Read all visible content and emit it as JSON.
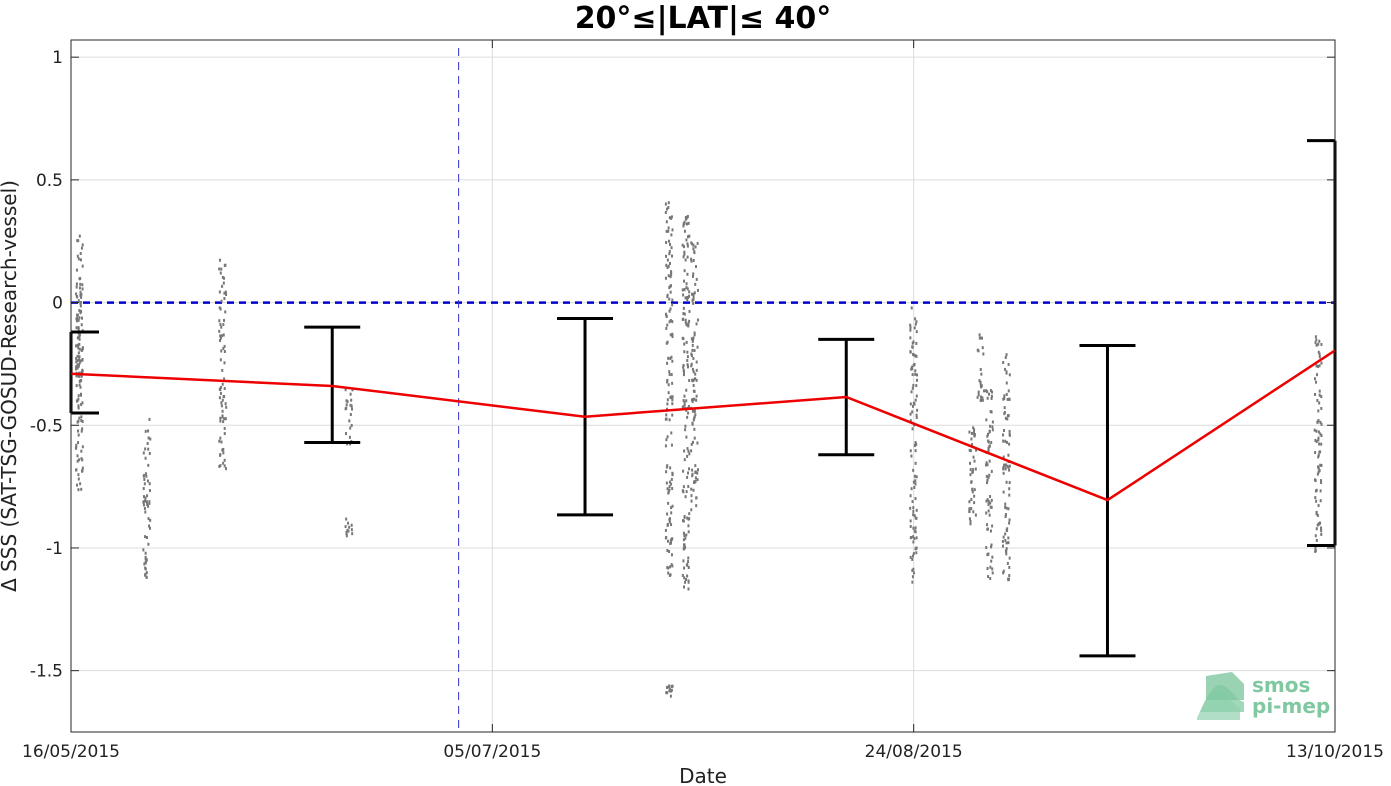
{
  "chart_data": {
    "type": "scatter",
    "title": "20°≤|LAT|≤ 40°",
    "xlabel": "Date",
    "ylabel": "Δ SSS (SAT-TSG-GOSUD-Research-vessel)",
    "x_ticks": [
      "16/05/2015",
      "05/07/2015",
      "24/08/2015",
      "13/10/2015"
    ],
    "x_range": [
      "2015-05-16",
      "2015-10-13"
    ],
    "y_ticks": [
      "1",
      "0.5",
      "0",
      "-0.5",
      "-1",
      "-1.5"
    ],
    "ylim": [
      -1.75,
      1.07
    ],
    "grid": true,
    "zero_line": {
      "y": 0,
      "color": "#0000cc",
      "style": "dashed"
    },
    "reference_line": {
      "date": "2015-07-01",
      "color": "#3333cc",
      "style": "dashed"
    },
    "series": [
      {
        "kind": "scatter",
        "color": "#777777",
        "clusters": [
          {
            "date": "2015-05-17",
            "y_min": -0.77,
            "y_max": 0.3
          },
          {
            "date": "2015-05-17",
            "y_min": -0.45,
            "y_max": 0.12
          },
          {
            "date": "2015-05-25",
            "y_min": -1.12,
            "y_max": -0.45
          },
          {
            "date": "2015-06-03",
            "y_min": -0.68,
            "y_max": 0.18
          },
          {
            "date": "2015-06-18",
            "y_min": -0.6,
            "y_max": -0.35
          },
          {
            "date": "2015-06-18",
            "y_min": -0.96,
            "y_max": -0.88
          },
          {
            "date": "2015-07-26",
            "y_min": -1.12,
            "y_max": 0.42
          },
          {
            "date": "2015-07-28",
            "y_min": -1.17,
            "y_max": 0.37
          },
          {
            "date": "2015-07-29",
            "y_min": -0.86,
            "y_max": 0.25
          },
          {
            "date": "2015-07-26",
            "y_min": -1.61,
            "y_max": -1.56
          },
          {
            "date": "2015-08-24",
            "y_min": -1.14,
            "y_max": -0.02
          },
          {
            "date": "2015-08-31",
            "y_min": -0.91,
            "y_max": -0.45
          },
          {
            "date": "2015-09-01",
            "y_min": -0.4,
            "y_max": -0.13
          },
          {
            "date": "2015-09-02",
            "y_min": -1.13,
            "y_max": -0.35
          },
          {
            "date": "2015-09-04",
            "y_min": -1.14,
            "y_max": -0.21
          },
          {
            "date": "2015-10-11",
            "y_min": -1.03,
            "y_max": -0.12
          }
        ]
      },
      {
        "kind": "line",
        "color": "#ee0000",
        "points": [
          {
            "date": "2015-05-16",
            "y": -0.29
          },
          {
            "date": "2015-06-16",
            "y": -0.34
          },
          {
            "date": "2015-07-16",
            "y": -0.465
          },
          {
            "date": "2015-08-16",
            "y": -0.385
          },
          {
            "date": "2015-09-16",
            "y": -0.805
          },
          {
            "date": "2015-10-13",
            "y": -0.195
          }
        ]
      },
      {
        "kind": "errorbar",
        "color": "#000000",
        "bars": [
          {
            "date": "2015-05-16",
            "low": -0.45,
            "high": -0.12
          },
          {
            "date": "2015-06-16",
            "low": -0.57,
            "high": -0.1
          },
          {
            "date": "2015-07-16",
            "low": -0.865,
            "high": -0.065
          },
          {
            "date": "2015-08-16",
            "low": -0.62,
            "high": -0.15
          },
          {
            "date": "2015-09-16",
            "low": -1.44,
            "high": -0.175
          },
          {
            "date": "2015-10-13",
            "low": -0.99,
            "high": 0.66
          }
        ]
      }
    ],
    "logo": {
      "line1": "smos",
      "line2": "pi-mep",
      "color": "#7fc8a0"
    }
  }
}
